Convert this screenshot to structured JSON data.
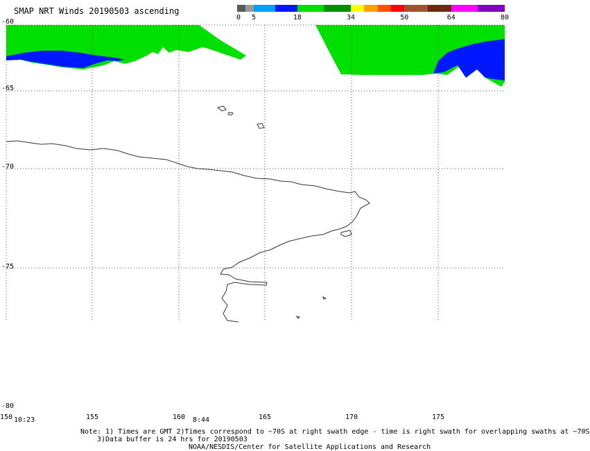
{
  "title": "SMAP NRT Winds 20190503 ascending",
  "colorbar": {
    "labels": [
      "0",
      "5",
      "18",
      "34",
      "50",
      "64",
      "80"
    ],
    "label_values": [
      0,
      5,
      18,
      34,
      50,
      64,
      80
    ],
    "segments": [
      {
        "from": 0,
        "to": 2.5,
        "color": "#5a5a5a"
      },
      {
        "from": 2.5,
        "to": 5,
        "color": "#9a9a9a"
      },
      {
        "from": 5,
        "to": 11.5,
        "color": "#00a0ff"
      },
      {
        "from": 11.5,
        "to": 18,
        "color": "#0018ff"
      },
      {
        "from": 18,
        "to": 26,
        "color": "#00e000"
      },
      {
        "from": 26,
        "to": 34,
        "color": "#009000"
      },
      {
        "from": 34,
        "to": 38,
        "color": "#ffff00"
      },
      {
        "from": 38,
        "to": 42,
        "color": "#ffa000"
      },
      {
        "from": 42,
        "to": 46,
        "color": "#ff5000"
      },
      {
        "from": 46,
        "to": 50,
        "color": "#ff0000"
      },
      {
        "from": 50,
        "to": 57,
        "color": "#a0522d"
      },
      {
        "from": 57,
        "to": 64,
        "color": "#6b2a10"
      },
      {
        "from": 64,
        "to": 72,
        "color": "#ff00ff"
      },
      {
        "from": 72,
        "to": 80,
        "color": "#8000c0"
      }
    ]
  },
  "axes": {
    "lat_labels": [
      "-60",
      "-65",
      "-70",
      "-75",
      "-80"
    ],
    "lon_labels": [
      "150",
      "155",
      "160",
      "165",
      "170",
      "175"
    ],
    "time_labels": [
      "10:23",
      "8:44"
    ]
  },
  "notes": [
    "Note: 1) Times are GMT 2)Times correspond to ~70S at right swath edge - time is right swath for overlapping swaths at ~70S",
    "3)Data buffer is 24 hrs for 20190503",
    "NOAA/NESDIS/Center for Satellite Applications and Research"
  ],
  "colors": {
    "wind_green": "#00e000",
    "wind_blue": "#0018ff",
    "coastline": "#333333",
    "grid": "#555555"
  }
}
